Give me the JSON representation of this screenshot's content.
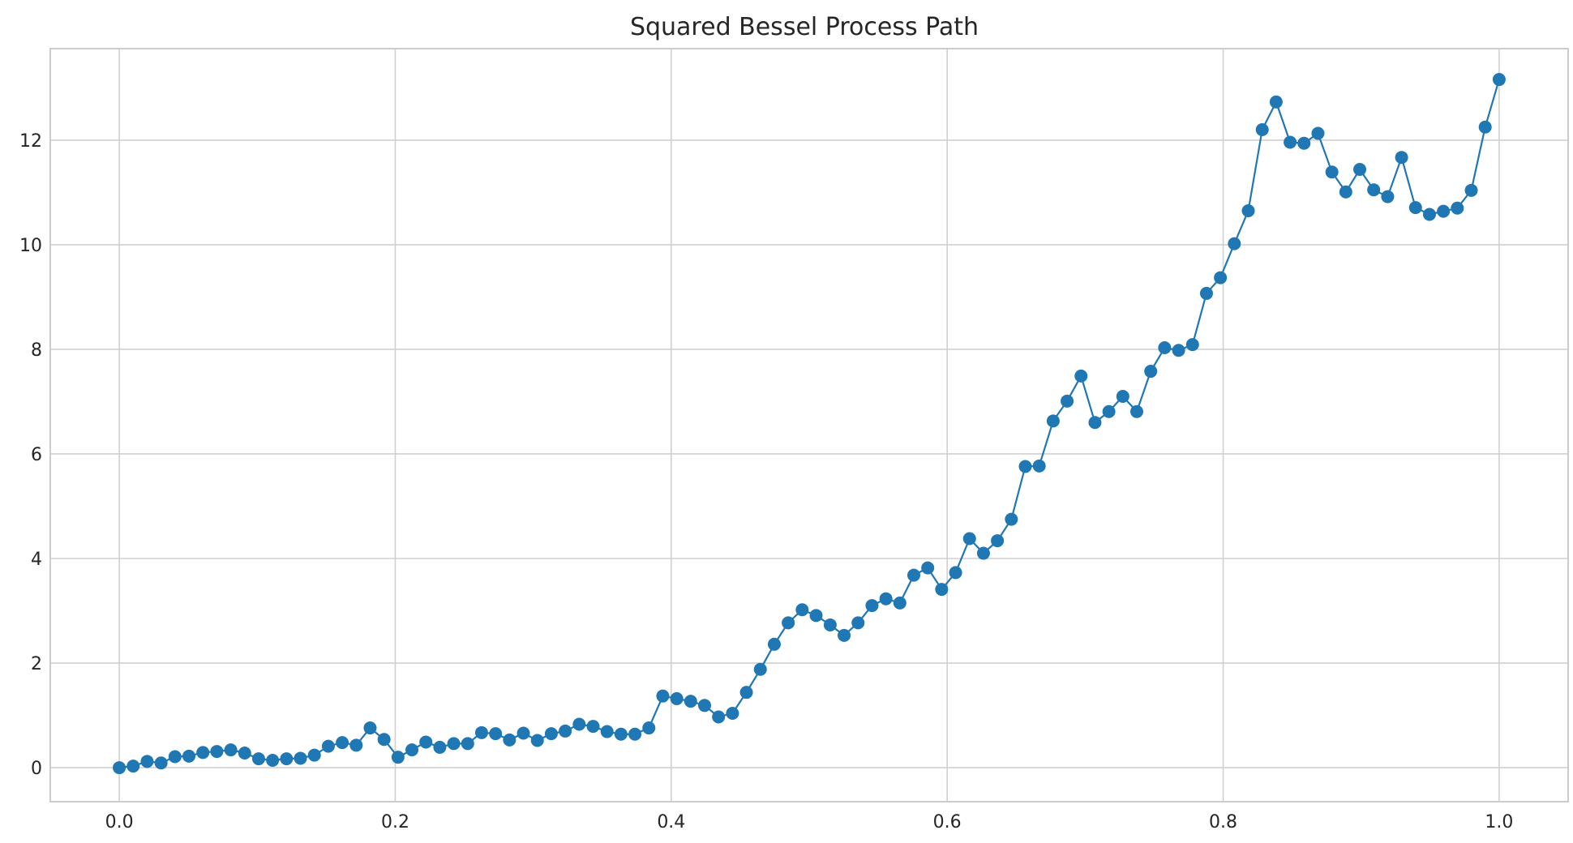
{
  "chart_data": {
    "type": "line",
    "title": "Squared Bessel Process Path",
    "xlabel": "",
    "ylabel": "",
    "xlim": [
      -0.05,
      1.05
    ],
    "ylim": [
      -0.65,
      13.75
    ],
    "xticks": [
      0.0,
      0.2,
      0.4,
      0.6,
      0.8,
      1.0
    ],
    "xtick_labels": [
      "0.0",
      "0.2",
      "0.4",
      "0.6",
      "0.8",
      "1.0"
    ],
    "yticks": [
      0,
      2,
      4,
      6,
      8,
      10,
      12
    ],
    "ytick_labels": [
      "0",
      "2",
      "4",
      "6",
      "8",
      "10",
      "12"
    ],
    "grid": true,
    "marker": "circle",
    "color": "#1f77b4",
    "series": [
      {
        "x": [
          0.0,
          0.0101,
          0.0202,
          0.0303,
          0.0404,
          0.0505,
          0.0606,
          0.0707,
          0.0808,
          0.0909,
          0.101,
          0.1111,
          0.1212,
          0.1313,
          0.1414,
          0.1515,
          0.1616,
          0.1717,
          0.1818,
          0.1919,
          0.202,
          0.2121,
          0.2222,
          0.2323,
          0.2424,
          0.2525,
          0.2626,
          0.2727,
          0.2828,
          0.2929,
          0.303,
          0.3131,
          0.3232,
          0.3333,
          0.3434,
          0.3535,
          0.3636,
          0.3737,
          0.3838,
          0.3939,
          0.404,
          0.4141,
          0.4242,
          0.4343,
          0.4444,
          0.4545,
          0.4646,
          0.4747,
          0.4848,
          0.4949,
          0.505,
          0.5152,
          0.5253,
          0.5354,
          0.5455,
          0.5556,
          0.5657,
          0.5758,
          0.5859,
          0.596,
          0.6061,
          0.6162,
          0.6263,
          0.6364,
          0.6465,
          0.6566,
          0.6667,
          0.6768,
          0.6869,
          0.697,
          0.7071,
          0.7172,
          0.7273,
          0.7374,
          0.7475,
          0.7576,
          0.7677,
          0.7778,
          0.7879,
          0.798,
          0.8081,
          0.8182,
          0.8283,
          0.8384,
          0.8485,
          0.8586,
          0.8687,
          0.8788,
          0.8889,
          0.899,
          0.9091,
          0.9192,
          0.9293,
          0.9394,
          0.9495,
          0.9596,
          0.9697,
          0.9798,
          0.9899,
          1.0
        ],
        "y": [
          0.0,
          0.03,
          0.12,
          0.09,
          0.21,
          0.22,
          0.29,
          0.31,
          0.34,
          0.28,
          0.17,
          0.14,
          0.17,
          0.18,
          0.24,
          0.41,
          0.48,
          0.43,
          0.76,
          0.54,
          0.2,
          0.34,
          0.49,
          0.39,
          0.46,
          0.46,
          0.67,
          0.65,
          0.53,
          0.66,
          0.52,
          0.65,
          0.7,
          0.83,
          0.79,
          0.69,
          0.64,
          0.64,
          0.76,
          1.37,
          1.32,
          1.27,
          1.19,
          0.97,
          1.04,
          1.44,
          1.88,
          2.36,
          2.77,
          3.02,
          2.91,
          2.73,
          2.53,
          2.77,
          3.1,
          3.23,
          3.15,
          3.68,
          3.82,
          3.41,
          3.73,
          4.38,
          4.1,
          4.34,
          4.75,
          5.76,
          5.77,
          6.63,
          7.01,
          7.49,
          6.6,
          6.81,
          7.1,
          6.81,
          7.58,
          8.03,
          7.98,
          8.09,
          9.07,
          9.37,
          10.02,
          10.65,
          12.2,
          12.73,
          11.96,
          11.94,
          12.13,
          11.39,
          11.01,
          11.44,
          11.05,
          10.92,
          11.67,
          10.71,
          10.58,
          10.64,
          10.7,
          11.04,
          12.25,
          13.16
        ]
      }
    ]
  }
}
